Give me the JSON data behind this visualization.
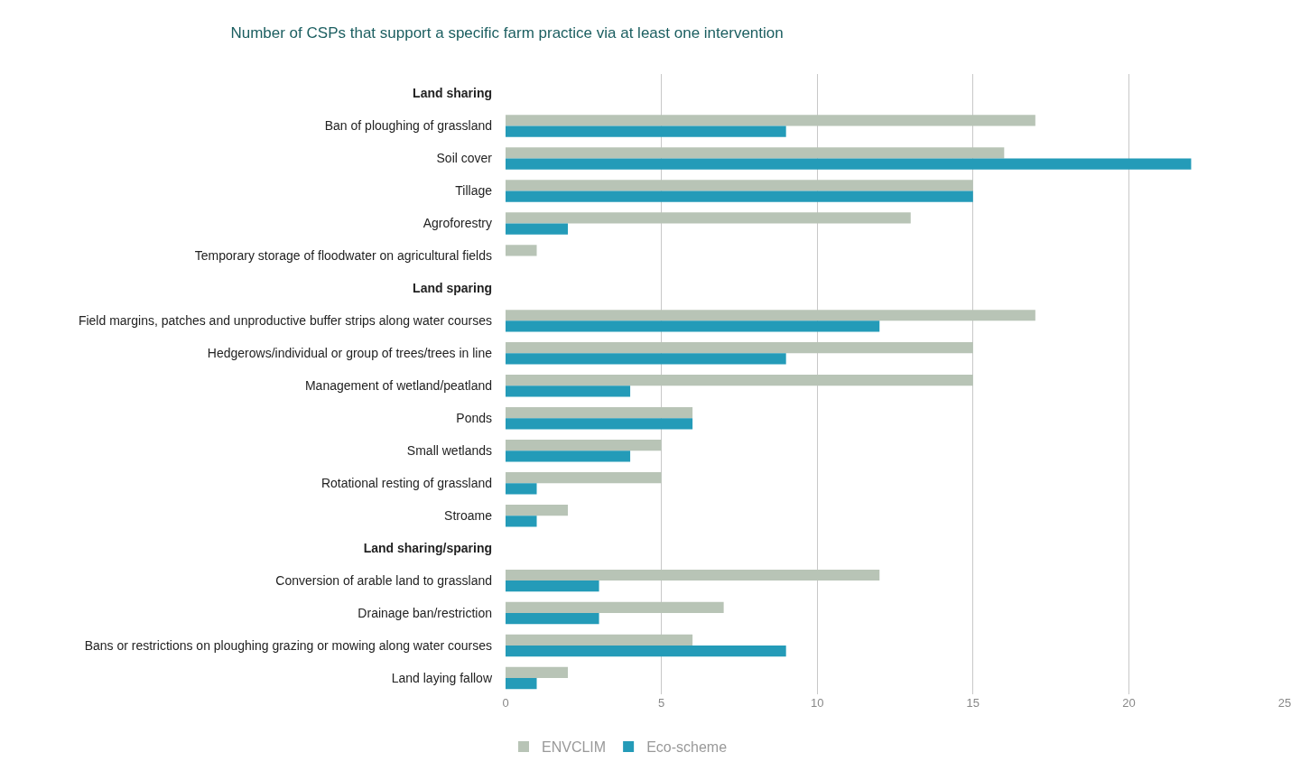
{
  "chart_data": {
    "type": "bar",
    "orientation": "horizontal",
    "title": "Number of CSPs that support a specific farm practice via at least one intervention",
    "categories": [
      "Land sharing",
      "Ban of ploughing of grassland",
      "Soil cover",
      "Tillage",
      "Agroforestry",
      "Temporary storage of floodwater on agricultural fields",
      "Land sparing",
      "Field margins, patches and unproductive buffer strips along water courses",
      "Hedgerows/individual or group of trees/trees in line",
      "Management of wetland/peatland",
      "Ponds",
      "Small wetlands",
      "Rotational resting of grassland",
      "Stroame",
      "Land sharing/sparing",
      "Conversion of arable land to grassland",
      "Drainage ban/restriction",
      "Bans or restrictions on ploughing grazing or mowing along water courses",
      "Land laying fallow"
    ],
    "series": [
      {
        "name": "ENVCLIM",
        "color": "#b8c4b6",
        "values": [
          null,
          17,
          16,
          15,
          13,
          1,
          null,
          17,
          15,
          15,
          6,
          5,
          5,
          2,
          null,
          12,
          7,
          6,
          2
        ]
      },
      {
        "name": "Eco-scheme",
        "color": "#249bb8",
        "values": [
          null,
          9,
          22,
          15,
          2,
          null,
          null,
          12,
          9,
          4,
          6,
          4,
          1,
          1,
          null,
          3,
          3,
          9,
          1
        ]
      }
    ],
    "xlim": [
      0,
      25
    ],
    "xticks": [
      0,
      5,
      10,
      15,
      20,
      25
    ],
    "grid": "x",
    "legend": "bottom left"
  }
}
